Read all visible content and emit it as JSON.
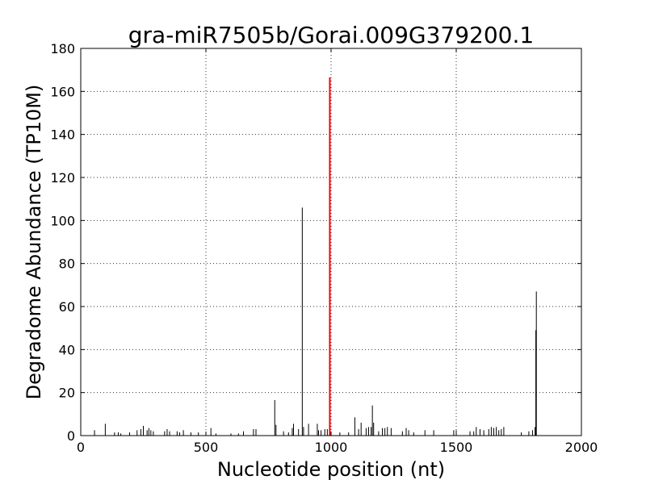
{
  "chart_data": {
    "type": "bar",
    "title": "gra-miR7505b/Gorai.009G379200.1",
    "xlabel": "Nucleotide position (nt)",
    "ylabel": "Degradome Abundance (TP10M)",
    "xlim": [
      0,
      2000
    ],
    "ylim": [
      0,
      180
    ],
    "xticks": [
      0,
      500,
      1000,
      1500,
      2000
    ],
    "yticks": [
      0,
      20,
      40,
      60,
      80,
      100,
      120,
      140,
      160,
      180
    ],
    "xtick_labels": [
      "0",
      "500",
      "1000",
      "1500",
      "2000"
    ],
    "ytick_labels": [
      "0",
      "20",
      "40",
      "60",
      "80",
      "100",
      "120",
      "140",
      "160",
      "180"
    ],
    "grid": true,
    "colors": {
      "default": "#000000",
      "highlight": "#ff0000"
    },
    "series": [
      {
        "values": [
          [
            55,
            2.5
          ],
          [
            98,
            5.5
          ],
          [
            135,
            1.5
          ],
          [
            150,
            1.5
          ],
          [
            160,
            1
          ],
          [
            195,
            1.5
          ],
          [
            225,
            2.5
          ],
          [
            240,
            3
          ],
          [
            250,
            4.5
          ],
          [
            265,
            2.5
          ],
          [
            272,
            3.5
          ],
          [
            280,
            2.5
          ],
          [
            290,
            2
          ],
          [
            335,
            2
          ],
          [
            345,
            3
          ],
          [
            355,
            2
          ],
          [
            385,
            2
          ],
          [
            395,
            1.5
          ],
          [
            410,
            2.5
          ],
          [
            440,
            1.5
          ],
          [
            470,
            1.5
          ],
          [
            500,
            1.5
          ],
          [
            520,
            3.5
          ],
          [
            540,
            1
          ],
          [
            600,
            1
          ],
          [
            630,
            1
          ],
          [
            650,
            2
          ],
          [
            690,
            3
          ],
          [
            700,
            3
          ],
          [
            775,
            16.5
          ],
          [
            780,
            5
          ],
          [
            810,
            2
          ],
          [
            830,
            1.5
          ],
          [
            845,
            3.5
          ],
          [
            850,
            5.5
          ],
          [
            870,
            3
          ],
          [
            885,
            106
          ],
          [
            890,
            4
          ],
          [
            910,
            5.5
          ],
          [
            945,
            5.5
          ],
          [
            950,
            2.5
          ],
          [
            960,
            2.5
          ],
          [
            975,
            3
          ],
          [
            985,
            3
          ],
          [
            1035,
            1.5
          ],
          [
            1070,
            1.5
          ],
          [
            1095,
            8.5
          ],
          [
            1110,
            3
          ],
          [
            1120,
            6
          ],
          [
            1140,
            3.5
          ],
          [
            1150,
            4
          ],
          [
            1160,
            4
          ],
          [
            1165,
            14
          ],
          [
            1170,
            6
          ],
          [
            1190,
            2
          ],
          [
            1205,
            3.5
          ],
          [
            1215,
            3.5
          ],
          [
            1225,
            4
          ],
          [
            1240,
            3.5
          ],
          [
            1285,
            2
          ],
          [
            1300,
            3.5
          ],
          [
            1310,
            2.5
          ],
          [
            1330,
            1.5
          ],
          [
            1375,
            2.5
          ],
          [
            1410,
            2.5
          ],
          [
            1490,
            2.5
          ],
          [
            1500,
            2.5
          ],
          [
            1555,
            2
          ],
          [
            1570,
            2
          ],
          [
            1580,
            4
          ],
          [
            1595,
            3
          ],
          [
            1610,
            2.5
          ],
          [
            1630,
            3
          ],
          [
            1640,
            4
          ],
          [
            1650,
            3.5
          ],
          [
            1660,
            4
          ],
          [
            1670,
            2.5
          ],
          [
            1680,
            3
          ],
          [
            1690,
            4
          ],
          [
            1760,
            1.5
          ],
          [
            1790,
            2
          ],
          [
            1805,
            2.5
          ],
          [
            1815,
            4
          ],
          [
            1818,
            49
          ],
          [
            1820,
            67
          ]
        ]
      },
      {
        "values": [
          [
            995,
            166.5
          ]
        ],
        "highlight": true
      }
    ]
  }
}
